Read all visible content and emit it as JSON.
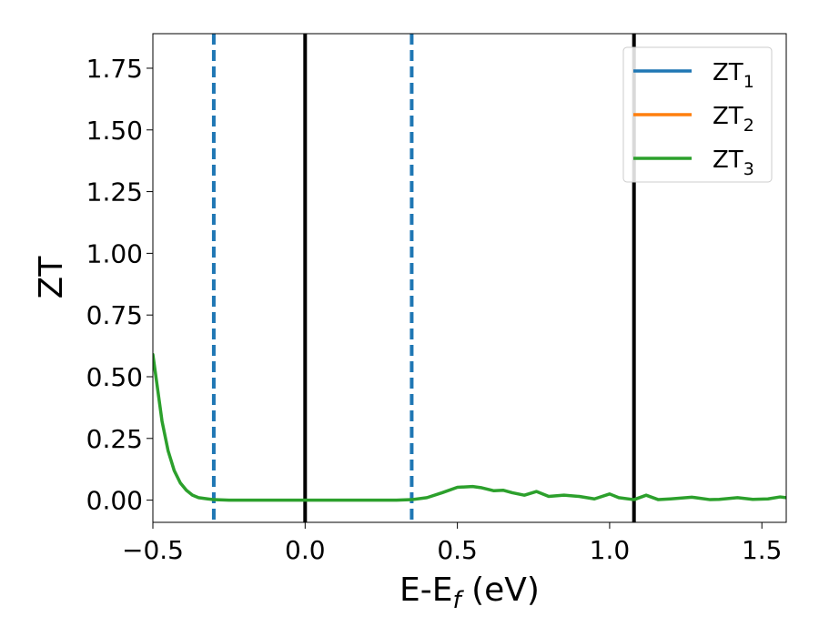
{
  "chart_data": {
    "type": "line",
    "xlabel": {
      "main": "E-E",
      "sub": "f",
      "unit": " (eV)"
    },
    "ylabel": "ZT",
    "xlim": [
      -0.5,
      1.58
    ],
    "ylim": [
      -0.09,
      1.89
    ],
    "xticks": [
      -0.5,
      0.0,
      0.5,
      1.0,
      1.5
    ],
    "xtick_labels": [
      "−0.5",
      "0.0",
      "0.5",
      "1.0",
      "1.5"
    ],
    "yticks": [
      0.0,
      0.25,
      0.5,
      0.75,
      1.0,
      1.25,
      1.5,
      1.75
    ],
    "ytick_labels": [
      "0.00",
      "0.25",
      "0.50",
      "0.75",
      "1.00",
      "1.25",
      "1.50",
      "1.75"
    ],
    "grid": false,
    "legend_position": "top-right",
    "vertical_lines": [
      {
        "x": -0.3,
        "style": "dashed",
        "color": "#1f77b4"
      },
      {
        "x": 0.0,
        "style": "solid",
        "color": "#000000"
      },
      {
        "x": 0.35,
        "style": "dashed",
        "color": "#1f77b4"
      },
      {
        "x": 1.08,
        "style": "solid",
        "color": "#000000"
      }
    ],
    "series": [
      {
        "name": "ZT",
        "subscript": "1",
        "color": "#1f77b4",
        "x": [
          -0.5,
          -0.47,
          -0.45,
          -0.43,
          -0.41,
          -0.39,
          -0.37,
          -0.35,
          -0.32,
          -0.3,
          -0.25,
          -0.2,
          -0.1,
          0.0,
          0.1,
          0.2,
          0.3,
          0.35,
          0.4,
          0.45,
          0.5,
          0.55,
          0.58,
          0.62,
          0.65,
          0.68,
          0.72,
          0.76,
          0.8,
          0.85,
          0.9,
          0.95,
          1.0,
          1.03,
          1.08,
          1.12,
          1.16,
          1.2,
          1.27,
          1.33,
          1.36,
          1.42,
          1.47,
          1.52,
          1.56,
          1.58
        ],
        "y": [
          0.59,
          0.32,
          0.2,
          0.12,
          0.07,
          0.04,
          0.02,
          0.01,
          0.005,
          0.002,
          0.0,
          0.0,
          0.0,
          0.0,
          0.0,
          0.0,
          0.0,
          0.002,
          0.01,
          0.03,
          0.052,
          0.055,
          0.05,
          0.038,
          0.04,
          0.03,
          0.02,
          0.035,
          0.015,
          0.02,
          0.015,
          0.005,
          0.025,
          0.01,
          0.002,
          0.02,
          0.002,
          0.005,
          0.012,
          0.002,
          0.003,
          0.01,
          0.003,
          0.005,
          0.013,
          0.01
        ],
        "visible": false
      },
      {
        "name": "ZT",
        "subscript": "2",
        "color": "#ff7f0e",
        "x": [
          -0.5,
          -0.47,
          -0.45,
          -0.43,
          -0.41,
          -0.39,
          -0.37,
          -0.35,
          -0.32,
          -0.3,
          -0.25,
          -0.2,
          -0.1,
          0.0,
          0.1,
          0.2,
          0.3,
          0.35,
          0.4,
          0.45,
          0.5,
          0.55,
          0.58,
          0.62,
          0.65,
          0.68,
          0.72,
          0.76,
          0.8,
          0.85,
          0.9,
          0.95,
          1.0,
          1.03,
          1.08,
          1.12,
          1.16,
          1.2,
          1.27,
          1.33,
          1.36,
          1.42,
          1.47,
          1.52,
          1.56,
          1.58
        ],
        "y": [
          0.59,
          0.32,
          0.2,
          0.12,
          0.07,
          0.04,
          0.02,
          0.01,
          0.005,
          0.002,
          0.0,
          0.0,
          0.0,
          0.0,
          0.0,
          0.0,
          0.0,
          0.002,
          0.01,
          0.03,
          0.052,
          0.055,
          0.05,
          0.038,
          0.04,
          0.03,
          0.02,
          0.035,
          0.015,
          0.02,
          0.015,
          0.005,
          0.025,
          0.01,
          0.002,
          0.02,
          0.002,
          0.005,
          0.012,
          0.002,
          0.003,
          0.01,
          0.003,
          0.005,
          0.013,
          0.01
        ],
        "visible": false
      },
      {
        "name": "ZT",
        "subscript": "3",
        "color": "#2ca02c",
        "x": [
          -0.5,
          -0.47,
          -0.45,
          -0.43,
          -0.41,
          -0.39,
          -0.37,
          -0.35,
          -0.32,
          -0.3,
          -0.25,
          -0.2,
          -0.1,
          0.0,
          0.1,
          0.2,
          0.3,
          0.35,
          0.4,
          0.45,
          0.5,
          0.55,
          0.58,
          0.62,
          0.65,
          0.68,
          0.72,
          0.76,
          0.8,
          0.85,
          0.9,
          0.95,
          1.0,
          1.03,
          1.08,
          1.12,
          1.16,
          1.2,
          1.27,
          1.33,
          1.36,
          1.42,
          1.47,
          1.52,
          1.56,
          1.58
        ],
        "y": [
          0.59,
          0.32,
          0.2,
          0.12,
          0.07,
          0.04,
          0.02,
          0.01,
          0.005,
          0.002,
          0.0,
          0.0,
          0.0,
          0.0,
          0.0,
          0.0,
          0.0,
          0.002,
          0.01,
          0.03,
          0.052,
          0.055,
          0.05,
          0.038,
          0.04,
          0.03,
          0.02,
          0.035,
          0.015,
          0.02,
          0.015,
          0.005,
          0.025,
          0.01,
          0.002,
          0.02,
          0.002,
          0.005,
          0.012,
          0.002,
          0.003,
          0.01,
          0.003,
          0.005,
          0.013,
          0.01
        ],
        "visible": true
      }
    ]
  }
}
